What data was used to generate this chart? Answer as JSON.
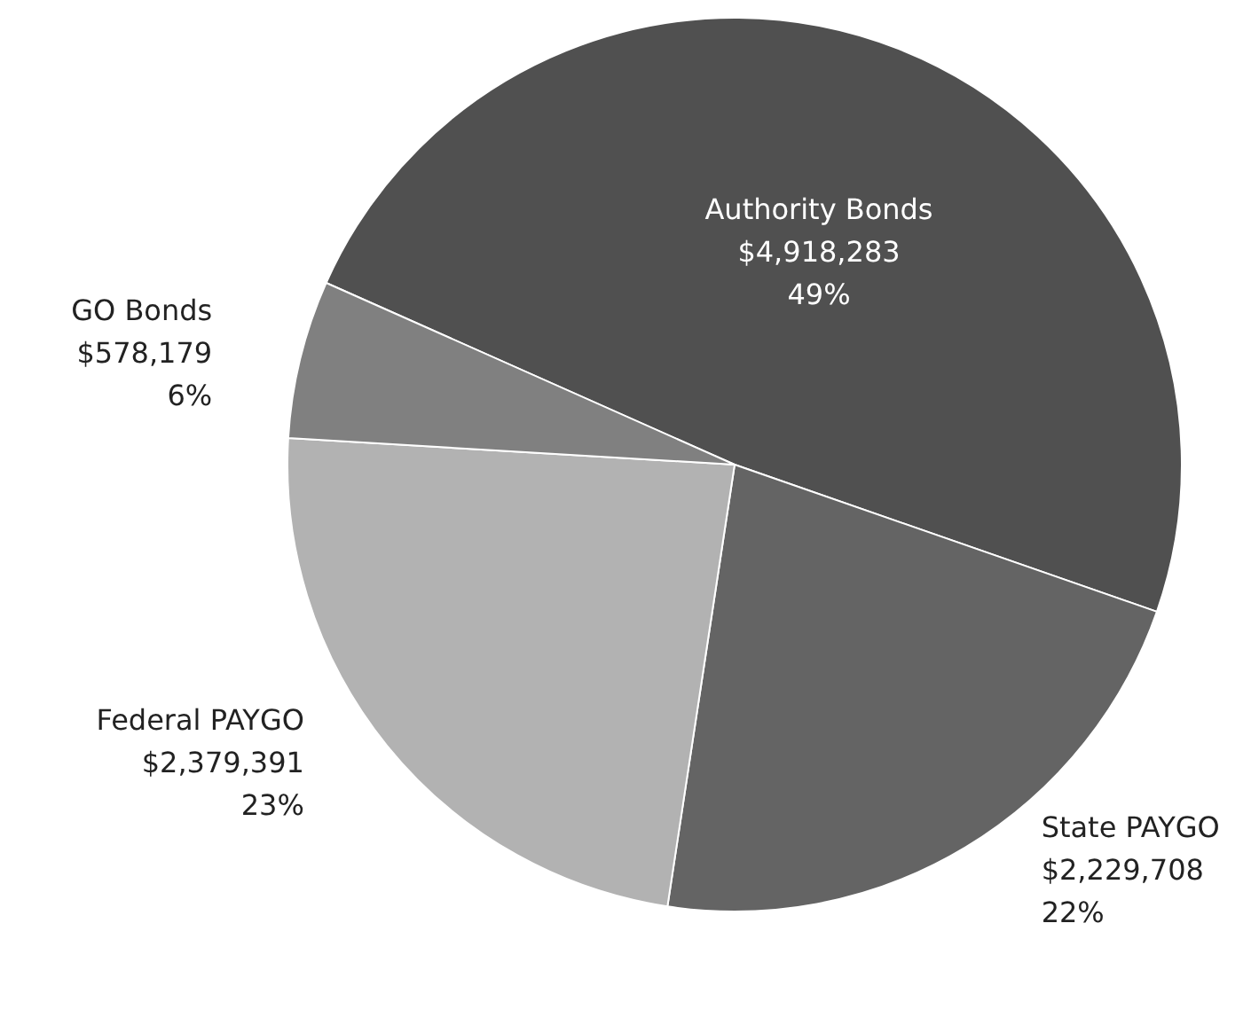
{
  "chart_data": {
    "type": "pie",
    "categories": [
      "Authority Bonds",
      "State PAYGO",
      "Federal PAYGO",
      "GO Bonds"
    ],
    "values": [
      4918283,
      2229708,
      2379391,
      578179
    ],
    "colors": [
      "#505050",
      "#646464",
      "#b2b2b2",
      "#808080"
    ],
    "value_labels": [
      "$4,918,283\n49%",
      "$2,229,708\n22%",
      "$2,379,391\n23%",
      "$578,179\n6%"
    ]
  }
}
